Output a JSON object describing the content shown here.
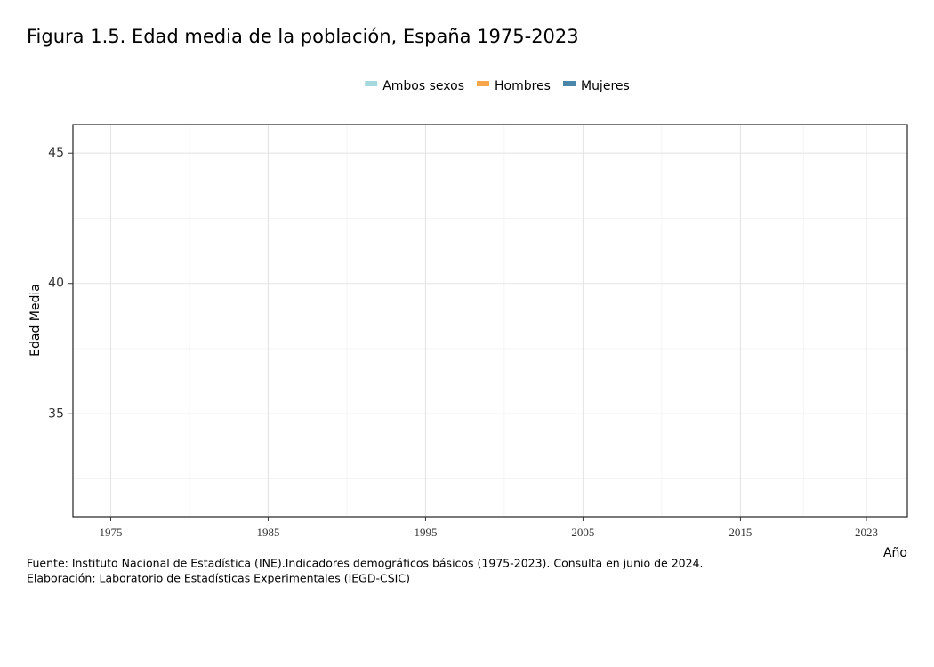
{
  "chart_data": {
    "type": "line",
    "title": "Figura 1.5. Edad media de la población, España 1975-2023",
    "x_label": "Año",
    "y_label": "Edad Media",
    "x": [],
    "series": [
      {
        "name": "Ambos sexos",
        "color": "#a6d9dd",
        "values": []
      },
      {
        "name": "Hombres",
        "color": "#f5a54a",
        "values": []
      },
      {
        "name": "Mujeres",
        "color": "#4a86a8",
        "values": []
      }
    ],
    "xlim": [
      1972.6,
      2025.6
    ],
    "xticks": [
      1975,
      1985,
      1995,
      2005,
      2015,
      2023
    ],
    "ylim": [
      31.05,
      46.1
    ],
    "yticks": [
      35,
      40,
      45
    ],
    "grid": true,
    "legend": "top",
    "source": [
      "Fuente: Instituto Nacional de Estadística (INE).Indicadores demográficos básicos (1975-2023). Consulta en junio de 2024.",
      "Elaboración: Laboratorio de Estadísticas Experimentales (IEGD-CSIC)"
    ]
  }
}
